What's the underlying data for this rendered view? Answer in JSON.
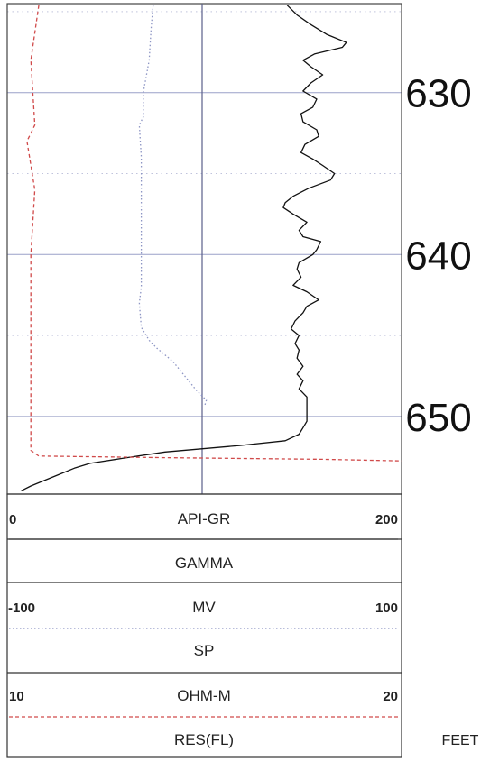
{
  "depth_unit_label": "FEET",
  "colors": {
    "grid": "#9aa0c8",
    "gr_curve": "#111111",
    "sp_curve": "#8d95c4",
    "res_curve": "#d04a4a",
    "track_border": "#333333"
  },
  "headers": [
    {
      "scale_left": "0",
      "mnemonic": "API-GR",
      "scale_right": "200",
      "curve_name": "GAMMA",
      "style": "solid"
    },
    {
      "scale_left": "-100",
      "mnemonic": "MV",
      "scale_right": "100",
      "curve_name": "SP",
      "style": "dotted"
    },
    {
      "scale_left": "10",
      "mnemonic": "OHM-M",
      "scale_right": "20",
      "curve_name": "RES(FL)",
      "style": "dashed"
    }
  ],
  "chart_data": {
    "type": "line",
    "depth_axis": {
      "ticks": [
        630,
        640,
        650
      ],
      "range": [
        624.5,
        654.8
      ],
      "grid_interval": 5
    },
    "series": [
      {
        "name": "GAMMA",
        "unit": "API-GR",
        "scale": [
          0,
          200
        ],
        "points": [
          [
            624.6,
            142
          ],
          [
            625.2,
            147
          ],
          [
            625.8,
            154
          ],
          [
            626.4,
            162
          ],
          [
            626.9,
            172
          ],
          [
            627.2,
            170
          ],
          [
            627.6,
            156
          ],
          [
            628.0,
            150
          ],
          [
            628.4,
            154
          ],
          [
            628.9,
            160
          ],
          [
            629.4,
            154
          ],
          [
            629.9,
            150
          ],
          [
            630.4,
            157
          ],
          [
            630.9,
            155
          ],
          [
            631.3,
            149
          ],
          [
            631.8,
            150
          ],
          [
            632.3,
            157
          ],
          [
            632.7,
            158
          ],
          [
            633.2,
            151
          ],
          [
            633.7,
            149
          ],
          [
            634.1,
            155
          ],
          [
            634.5,
            160
          ],
          [
            635.0,
            166
          ],
          [
            635.4,
            164
          ],
          [
            635.9,
            153
          ],
          [
            636.4,
            145
          ],
          [
            636.8,
            141
          ],
          [
            637.1,
            140
          ],
          [
            637.5,
            145
          ],
          [
            638.0,
            152
          ],
          [
            638.5,
            148
          ],
          [
            638.9,
            150
          ],
          [
            639.2,
            159
          ],
          [
            639.7,
            157
          ],
          [
            640.0,
            155
          ],
          [
            640.5,
            148
          ],
          [
            640.9,
            147
          ],
          [
            641.4,
            149
          ],
          [
            641.9,
            145
          ],
          [
            642.3,
            152
          ],
          [
            642.8,
            158
          ],
          [
            643.2,
            152
          ],
          [
            643.6,
            150
          ],
          [
            644.1,
            146
          ],
          [
            644.6,
            144
          ],
          [
            645.0,
            148
          ],
          [
            645.5,
            146
          ],
          [
            645.9,
            148
          ],
          [
            646.4,
            147
          ],
          [
            646.9,
            150
          ],
          [
            647.4,
            147
          ],
          [
            647.8,
            150
          ],
          [
            648.3,
            148
          ],
          [
            648.8,
            152
          ],
          [
            649.3,
            152
          ],
          [
            649.8,
            152
          ],
          [
            650.3,
            152
          ],
          [
            650.7,
            150
          ],
          [
            651.1,
            148
          ],
          [
            651.5,
            141
          ],
          [
            651.8,
            118
          ],
          [
            652.2,
            80
          ],
          [
            652.6,
            58
          ],
          [
            652.9,
            42
          ],
          [
            653.2,
            34
          ],
          [
            653.6,
            26
          ],
          [
            654.0,
            18
          ],
          [
            654.3,
            12
          ],
          [
            654.6,
            7
          ]
        ]
      },
      {
        "name": "SP",
        "unit": "MV",
        "scale": [
          -100,
          100
        ],
        "points": [
          [
            624.6,
            -26
          ],
          [
            626.0,
            -27
          ],
          [
            628.0,
            -28
          ],
          [
            630.0,
            -31
          ],
          [
            631.5,
            -31
          ],
          [
            632.0,
            -33
          ],
          [
            634.0,
            -32
          ],
          [
            636.0,
            -32
          ],
          [
            638.0,
            -32
          ],
          [
            640.0,
            -32
          ],
          [
            642.0,
            -32
          ],
          [
            643.0,
            -33
          ],
          [
            644.5,
            -32
          ],
          [
            645.3,
            -28
          ],
          [
            645.8,
            -24
          ],
          [
            646.2,
            -20
          ],
          [
            646.6,
            -16
          ],
          [
            647.2,
            -12
          ],
          [
            647.8,
            -8
          ],
          [
            648.4,
            -4
          ],
          [
            649.0,
            1
          ],
          [
            649.4,
            0
          ]
        ]
      },
      {
        "name": "RES(FL)",
        "unit": "OHM-M",
        "scale": [
          10,
          20
        ],
        "points": [
          [
            624.6,
            10.8
          ],
          [
            628.0,
            10.6
          ],
          [
            632.0,
            10.7
          ],
          [
            633.0,
            10.5
          ],
          [
            636.0,
            10.7
          ],
          [
            640.0,
            10.6
          ],
          [
            644.0,
            10.6
          ],
          [
            648.0,
            10.6
          ],
          [
            651.0,
            10.6
          ],
          [
            652.1,
            10.6
          ],
          [
            652.45,
            10.8
          ],
          [
            652.55,
            14.0
          ],
          [
            652.65,
            18.0
          ],
          [
            652.75,
            20.0
          ]
        ]
      }
    ]
  }
}
